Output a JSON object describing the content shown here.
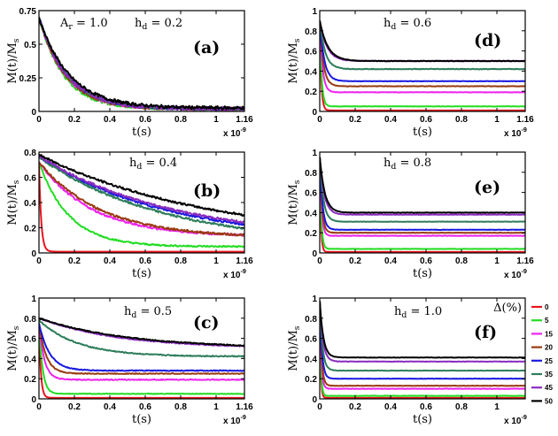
{
  "legend": {
    "title": "Δ(%)",
    "entries": [
      {
        "label": "0",
        "color": "#e8141e"
      },
      {
        "label": "5",
        "color": "#22dd22"
      },
      {
        "label": "15",
        "color": "#ee22ee"
      },
      {
        "label": "20",
        "color": "#9a3a10"
      },
      {
        "label": "25",
        "color": "#1818e0"
      },
      {
        "label": "35",
        "color": "#2e7d5b"
      },
      {
        "label": "45",
        "color": "#8a2bbf"
      },
      {
        "label": "50",
        "color": "#000000"
      }
    ]
  },
  "chart_data": [
    {
      "type": "line",
      "panel": "(a)",
      "ylabel": "M(t)/M_s",
      "xlabel": "t(s)",
      "x_multiplier": "x 10^-9",
      "annotations": [
        "A_r = 1.0",
        "h_d = 0.2"
      ],
      "xlim": [
        0,
        1.16
      ],
      "ylim": [
        0,
        0.75
      ],
      "xticks": [
        "0",
        "0.2",
        "0.4",
        "0.6",
        "0.8",
        "1",
        "1.16"
      ],
      "yticks": [
        "0",
        "0.25",
        "0.5",
        "0.75"
      ],
      "series": [
        {
          "name": "0",
          "initial": 0.7,
          "plateau": 0.02,
          "tau": 0.15,
          "noise": 0.012
        },
        {
          "name": "5",
          "initial": 0.7,
          "plateau": 0.02,
          "tau": 0.14,
          "noise": 0.012
        },
        {
          "name": "15",
          "initial": 0.7,
          "plateau": 0.02,
          "tau": 0.15,
          "noise": 0.012
        },
        {
          "name": "20",
          "initial": 0.7,
          "plateau": 0.02,
          "tau": 0.15,
          "noise": 0.012
        },
        {
          "name": "25",
          "initial": 0.7,
          "plateau": 0.02,
          "tau": 0.16,
          "noise": 0.012
        },
        {
          "name": "35",
          "initial": 0.7,
          "plateau": 0.02,
          "tau": 0.16,
          "noise": 0.012
        },
        {
          "name": "45",
          "initial": 0.7,
          "plateau": 0.02,
          "tau": 0.16,
          "noise": 0.012
        },
        {
          "name": "50",
          "initial": 0.7,
          "plateau": 0.025,
          "tau": 0.17,
          "noise": 0.012
        }
      ]
    },
    {
      "type": "line",
      "panel": "(b)",
      "ylabel": "M(t)/M_s",
      "xlabel": "t(s)",
      "x_multiplier": "x 10^-9",
      "annotations": [
        "h_d = 0.4"
      ],
      "xlim": [
        0,
        1.16
      ],
      "ylim": [
        0,
        0.8
      ],
      "xticks": [
        "0",
        "0.2",
        "0.4",
        "0.6",
        "0.8",
        "1",
        "1.16"
      ],
      "yticks": [
        "0",
        "0.2",
        "0.4",
        "0.6",
        "0.8"
      ],
      "series": [
        {
          "name": "0",
          "initial": 0.72,
          "plateau": 0.01,
          "tau": 0.012,
          "noise": 0.0
        },
        {
          "name": "5",
          "initial": 0.72,
          "plateau": 0.05,
          "tau": 0.17,
          "noise": 0.006
        },
        {
          "name": "15",
          "initial": 0.72,
          "plateau": 0.13,
          "tau": 0.3,
          "noise": 0.008
        },
        {
          "name": "20",
          "initial": 0.72,
          "plateau": 0.12,
          "tau": 0.35,
          "noise": 0.008
        },
        {
          "name": "25",
          "initial": 0.76,
          "plateau": 0.08,
          "tau": 0.75,
          "noise": 0.008
        },
        {
          "name": "35",
          "initial": 0.76,
          "plateau": 0.06,
          "tau": 0.7,
          "noise": 0.008
        },
        {
          "name": "45",
          "initial": 0.77,
          "plateau": 0.1,
          "tau": 0.75,
          "noise": 0.008
        },
        {
          "name": "50",
          "initial": 0.78,
          "plateau": 0.1,
          "tau": 0.95,
          "noise": 0.008
        }
      ]
    },
    {
      "type": "line",
      "panel": "(c)",
      "ylabel": "M(t)/M_s",
      "xlabel": "t(s)",
      "x_multiplier": "x 10^-9",
      "annotations": [
        "h_d = 0.5"
      ],
      "xlim": [
        0,
        1.16
      ],
      "ylim": [
        0,
        1
      ],
      "xticks": [
        "0",
        "0.2",
        "0.4",
        "0.6",
        "0.8",
        "1",
        "1.16"
      ],
      "yticks": [
        "0",
        "0.2",
        "0.4",
        "0.6",
        "0.8",
        "1"
      ],
      "series": [
        {
          "name": "0",
          "initial": 0.75,
          "plateau": 0.01,
          "tau": 0.01,
          "noise": 0.0
        },
        {
          "name": "5",
          "initial": 0.75,
          "plateau": 0.05,
          "tau": 0.02,
          "noise": 0.003
        },
        {
          "name": "15",
          "initial": 0.75,
          "plateau": 0.19,
          "tau": 0.03,
          "noise": 0.004
        },
        {
          "name": "20",
          "initial": 0.75,
          "plateau": 0.25,
          "tau": 0.04,
          "noise": 0.004
        },
        {
          "name": "25",
          "initial": 0.75,
          "plateau": 0.28,
          "tau": 0.06,
          "noise": 0.004
        },
        {
          "name": "35",
          "initial": 0.78,
          "plateau": 0.42,
          "tau": 0.22,
          "noise": 0.005
        },
        {
          "name": "45",
          "initial": 0.8,
          "plateau": 0.5,
          "tau": 0.45,
          "noise": 0.005
        },
        {
          "name": "50",
          "initial": 0.8,
          "plateau": 0.5,
          "tau": 0.5,
          "noise": 0.005
        }
      ]
    },
    {
      "type": "line",
      "panel": "(d)",
      "ylabel": "M(t)/M_s",
      "xlabel": "t(s)",
      "x_multiplier": "x 10^-9",
      "annotations": [
        "h_d = 0.6"
      ],
      "xlim": [
        0,
        1.16
      ],
      "ylim": [
        0,
        1
      ],
      "xticks": [
        "0",
        "0.2",
        "0.4",
        "0.6",
        "0.8",
        "1",
        "1.16"
      ],
      "yticks": [
        "0",
        "0.2",
        "0.4",
        "0.6",
        "0.8",
        "1"
      ],
      "series": [
        {
          "name": "0",
          "initial": 0.9,
          "plateau": 0.01,
          "tau": 0.008,
          "noise": 0.0
        },
        {
          "name": "5",
          "initial": 0.9,
          "plateau": 0.05,
          "tau": 0.01,
          "noise": 0.002
        },
        {
          "name": "15",
          "initial": 0.9,
          "plateau": 0.19,
          "tau": 0.015,
          "noise": 0.002
        },
        {
          "name": "20",
          "initial": 0.9,
          "plateau": 0.25,
          "tau": 0.02,
          "noise": 0.002
        },
        {
          "name": "25",
          "initial": 0.9,
          "plateau": 0.3,
          "tau": 0.025,
          "noise": 0.002
        },
        {
          "name": "35",
          "initial": 0.9,
          "plateau": 0.42,
          "tau": 0.03,
          "noise": 0.003
        },
        {
          "name": "45",
          "initial": 0.9,
          "plateau": 0.5,
          "tau": 0.04,
          "noise": 0.003
        },
        {
          "name": "50",
          "initial": 0.9,
          "plateau": 0.5,
          "tau": 0.045,
          "noise": 0.003
        }
      ]
    },
    {
      "type": "line",
      "panel": "(e)",
      "ylabel": "M(t)/M_s",
      "xlabel": "t(s)",
      "x_multiplier": "x 10^-9",
      "annotations": [
        "h_d = 0.8"
      ],
      "xlim": [
        0,
        1.16
      ],
      "ylim": [
        0,
        1
      ],
      "xticks": [
        "0",
        "0.2",
        "0.4",
        "0.6",
        "0.8",
        "1",
        "1.16"
      ],
      "yticks": [
        "0",
        "0.2",
        "0.4",
        "0.6",
        "0.8",
        "1"
      ],
      "series": [
        {
          "name": "0",
          "initial": 0.95,
          "plateau": 0.01,
          "tau": 0.006,
          "noise": 0.0
        },
        {
          "name": "5",
          "initial": 0.95,
          "plateau": 0.04,
          "tau": 0.008,
          "noise": 0.002
        },
        {
          "name": "15",
          "initial": 0.95,
          "plateau": 0.17,
          "tau": 0.01,
          "noise": 0.002
        },
        {
          "name": "20",
          "initial": 0.95,
          "plateau": 0.2,
          "tau": 0.012,
          "noise": 0.002
        },
        {
          "name": "25",
          "initial": 0.95,
          "plateau": 0.23,
          "tau": 0.015,
          "noise": 0.002
        },
        {
          "name": "35",
          "initial": 0.95,
          "plateau": 0.31,
          "tau": 0.02,
          "noise": 0.002
        },
        {
          "name": "45",
          "initial": 0.95,
          "plateau": 0.38,
          "tau": 0.025,
          "noise": 0.002
        },
        {
          "name": "50",
          "initial": 0.95,
          "plateau": 0.4,
          "tau": 0.028,
          "noise": 0.002
        }
      ]
    },
    {
      "type": "line",
      "panel": "(f)",
      "ylabel": "M(t)/M_s",
      "xlabel": "t(s)",
      "x_multiplier": "x 10^-9",
      "annotations": [
        "h_d = 1.0"
      ],
      "xlim": [
        0,
        1.16
      ],
      "ylim": [
        0,
        1
      ],
      "xticks": [
        "0",
        "0.2",
        "0.4",
        "0.6",
        "0.8",
        "1"
      ],
      "yticks": [
        "0",
        "0.2",
        "0.4",
        "0.6",
        "0.8",
        "1"
      ],
      "series": [
        {
          "name": "0",
          "initial": 0.97,
          "plateau": 0.01,
          "tau": 0.005,
          "noise": 0.0
        },
        {
          "name": "5",
          "initial": 0.97,
          "plateau": 0.03,
          "tau": 0.006,
          "noise": 0.002
        },
        {
          "name": "15",
          "initial": 0.97,
          "plateau": 0.1,
          "tau": 0.008,
          "noise": 0.002
        },
        {
          "name": "20",
          "initial": 0.97,
          "plateau": 0.13,
          "tau": 0.01,
          "noise": 0.002
        },
        {
          "name": "25",
          "initial": 0.97,
          "plateau": 0.2,
          "tau": 0.012,
          "noise": 0.002
        },
        {
          "name": "35",
          "initial": 0.97,
          "plateau": 0.28,
          "tau": 0.015,
          "noise": 0.002
        },
        {
          "name": "45",
          "initial": 0.97,
          "plateau": 0.37,
          "tau": 0.018,
          "noise": 0.002
        },
        {
          "name": "50",
          "initial": 0.97,
          "plateau": 0.41,
          "tau": 0.02,
          "noise": 0.002
        }
      ]
    }
  ]
}
